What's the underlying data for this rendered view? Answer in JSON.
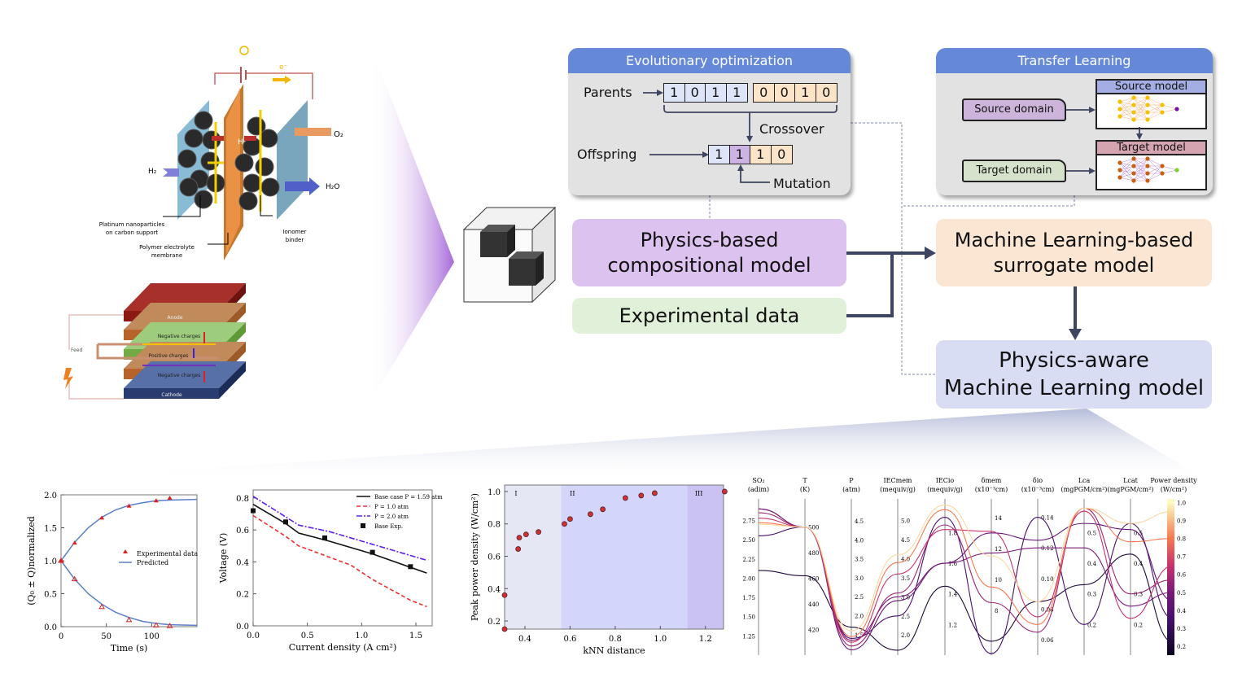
{
  "fuel_cell": {
    "h2": "H₂",
    "o2": "O₂",
    "h2o": "H₂O",
    "h_plus": "H⁺",
    "electron": "e⁻",
    "pt_label_1": "Platinum nanoparticles",
    "pt_label_2": "on carbon support",
    "membrane_1": "Polymer electrolyte",
    "membrane_2": "membrane",
    "ionomer_1": "Ionomer",
    "ionomer_2": "binder"
  },
  "stack": {
    "anode": "Anode",
    "neg1": "Negative charges",
    "pos": "Positive charges",
    "neg2": "Negative charges",
    "cathode": "Cathode",
    "feed": "Feed"
  },
  "evo": {
    "title": "Evolutionary optimization",
    "parents": "Parents",
    "offspring": "Offspring",
    "crossover": "Crossover",
    "mutation": "Mutation",
    "parent_a": [
      "1",
      "0",
      "1",
      "1"
    ],
    "parent_b": [
      "0",
      "0",
      "1",
      "0"
    ],
    "child": [
      "1",
      "1",
      "1",
      "0"
    ]
  },
  "transfer": {
    "title": "Transfer Learning",
    "source_domain": "Source domain",
    "target_domain": "Target domain",
    "source_model": "Source model",
    "target_model": "Target model"
  },
  "boxes": {
    "physics": "Physics-based\ncompositional model",
    "experimental": "Experimental data",
    "ml": "Machine Learning-based\nsurrogate model",
    "aware": "Physics-aware\nMachine Learning model"
  },
  "colors": {
    "header": "#6589d8",
    "physics": "#dcc2ef",
    "experimental": "#e1f0d9",
    "ml": "#fbe5d3",
    "aware": "#d8ddf4",
    "arrow": "#3d4560"
  },
  "chart_data": [
    {
      "type": "line",
      "xlabel": "Time (s)",
      "ylabel": "(Q₀ ± Q)normalized",
      "xlim": [
        0,
        150
      ],
      "ylim": [
        0,
        2.0
      ],
      "xticks": [
        "0",
        "50",
        "100"
      ],
      "yticks": [
        "0.0",
        "0.5",
        "1.0",
        "1.5",
        "2.0"
      ],
      "legend": [
        "Experimental data",
        "Predicted"
      ],
      "exp_x": [
        0,
        15,
        45,
        75,
        105,
        120
      ],
      "exp_upper": [
        1.0,
        1.27,
        1.65,
        1.83,
        1.91,
        1.95
      ],
      "exp_lower": [
        1.0,
        0.72,
        0.3,
        0.1,
        0.02,
        0.01
      ],
      "pred_x": [
        0,
        15,
        30,
        45,
        60,
        75,
        90,
        105,
        120,
        150
      ],
      "pred_upper": [
        1,
        1.28,
        1.5,
        1.66,
        1.77,
        1.84,
        1.88,
        1.91,
        1.92,
        1.93
      ],
      "pred_lower": [
        1,
        0.72,
        0.5,
        0.34,
        0.22,
        0.14,
        0.08,
        0.05,
        0.03,
        0.02
      ]
    },
    {
      "type": "line",
      "xlabel": "Current density (A cm²)",
      "ylabel": "Voltage (V)",
      "xlim": [
        0,
        1.65
      ],
      "ylim": [
        0,
        0.85
      ],
      "xticks": [
        "0.0",
        "0.5",
        "1.0",
        "1.5"
      ],
      "yticks": [
        "0.0",
        "0.2",
        "0.4",
        "0.6",
        "0.8"
      ],
      "series": [
        {
          "name": "Base case P = 1.59 atm",
          "x": [
            0,
            0.3,
            0.42,
            0.7,
            1.1,
            1.6
          ],
          "y": [
            0.76,
            0.64,
            0.58,
            0.53,
            0.45,
            0.33
          ]
        },
        {
          "name": "P = 1.0 atm",
          "x": [
            0,
            0.3,
            0.42,
            0.9,
            1.1,
            1.45,
            1.6
          ],
          "y": [
            0.69,
            0.56,
            0.5,
            0.38,
            0.29,
            0.16,
            0.12
          ]
        },
        {
          "name": "P = 2.0 atm",
          "x": [
            0,
            0.42,
            0.7,
            1.1,
            1.6
          ],
          "y": [
            0.81,
            0.63,
            0.59,
            0.51,
            0.41
          ]
        },
        {
          "name": "Base Exp.",
          "x": [
            0,
            0.3,
            0.66,
            1.1,
            1.45
          ],
          "y": [
            0.72,
            0.65,
            0.55,
            0.46,
            0.37
          ]
        }
      ]
    },
    {
      "type": "scatter",
      "xlabel": "kNN distance",
      "ylabel": "Peak power density (W/cm²)",
      "xlim": [
        0.31,
        1.28
      ],
      "ylim": [
        0.15,
        1.04
      ],
      "xticks": [
        "0.4",
        "0.6",
        "0.8",
        "1.0",
        "1.2"
      ],
      "yticks": [
        "0.2",
        "0.4",
        "0.6",
        "0.8",
        "1.0"
      ],
      "regions": [
        {
          "label": "I",
          "from": 0.31,
          "to": 0.56
        },
        {
          "label": "II",
          "from": 0.56,
          "to": 1.12
        },
        {
          "label": "III",
          "from": 1.12,
          "to": 1.28
        }
      ],
      "x": [
        0.31,
        0.31,
        0.37,
        0.375,
        0.405,
        0.46,
        0.575,
        0.6,
        0.69,
        0.745,
        0.845,
        0.915,
        0.975,
        1.285
      ],
      "y": [
        0.15,
        0.36,
        0.645,
        0.715,
        0.735,
        0.75,
        0.8,
        0.83,
        0.86,
        0.89,
        0.96,
        0.975,
        0.99,
        1.0
      ]
    },
    {
      "type": "parallel",
      "axes": [
        {
          "name": "SO₂",
          "unit": "(adim)",
          "range": [
            1.0,
            3.03
          ],
          "ticks": [
            "1.25",
            "1.50",
            "1.75",
            "2.00",
            "2.25",
            "2.50",
            "2.75"
          ]
        },
        {
          "name": "T",
          "unit": "(K)",
          "range": [
            400,
            522
          ],
          "ticks": [
            "420",
            "440",
            "460",
            "480",
            "500"
          ]
        },
        {
          "name": "P",
          "unit": "(atm)",
          "range": [
            0.96,
            5.08
          ],
          "ticks": [
            "1.5",
            "2.0",
            "2.5",
            "3.0",
            "3.5",
            "4.0",
            "4.5"
          ]
        },
        {
          "name": "IECmem",
          "unit": "(mequiv/g)",
          "range": [
            1.47,
            5.57
          ],
          "ticks": [
            "2.0",
            "2.5",
            "3.0",
            "3.5",
            "4.0",
            "4.5",
            "5.0"
          ]
        },
        {
          "name": "IECio",
          "unit": "(mequiv/g)",
          "range": [
            1.0,
            2.02
          ],
          "ticks": [
            "1.2",
            "1.4",
            "1.6",
            "1.8"
          ]
        },
        {
          "name": "δmem",
          "unit": "(x10⁻³cm)",
          "range": [
            5.1,
            15.2
          ],
          "ticks": [
            "8",
            "10",
            "12",
            "14"
          ]
        },
        {
          "name": "δio",
          "unit": "(x10⁻³cm)",
          "range": [
            0.05,
            0.152
          ],
          "ticks": [
            "0.06",
            "0.08",
            "0.10",
            "0.12",
            "0.14"
          ]
        },
        {
          "name": "Lca",
          "unit": "(mgPGM/cm²)",
          "range": [
            0.1,
            0.61
          ],
          "ticks": [
            "0.2",
            "0.3",
            "0.4",
            "0.5"
          ]
        },
        {
          "name": "Lcat",
          "unit": "(mgPGM/cm²)",
          "range": [
            0.1,
            0.61
          ],
          "ticks": [
            "0.2",
            "0.3",
            "0.4",
            "0.5"
          ]
        },
        {
          "name": "Power density",
          "unit": "(W/cm²)",
          "range": [
            0.15,
            1.02
          ],
          "ticks": [
            "0.2",
            "0.3",
            "0.4",
            "0.5",
            "0.6",
            "0.7",
            "0.8",
            "0.9",
            "1.0"
          ]
        }
      ],
      "lines": [
        [
          2.1,
          462,
          1.7,
          1.6,
          1.45,
          6.0,
          0.085,
          0.33,
          0.43,
          0.22
        ],
        [
          2.55,
          500,
          1.4,
          2.5,
          1.9,
          5.2,
          0.14,
          0.2,
          0.53,
          0.35
        ],
        [
          2.9,
          500,
          1.1,
          2.9,
          1.6,
          13.0,
          0.125,
          0.53,
          0.51,
          0.45
        ],
        [
          2.9,
          500,
          1.35,
          3.0,
          1.6,
          11.7,
          0.12,
          0.45,
          0.26,
          0.5
        ],
        [
          2.85,
          500,
          1.2,
          3.1,
          1.85,
          8.5,
          0.065,
          0.58,
          0.3,
          0.57
        ],
        [
          2.78,
          500,
          1.3,
          3.6,
          1.82,
          13.1,
          0.075,
          0.57,
          0.22,
          0.65
        ],
        [
          2.72,
          500,
          1.45,
          3.9,
          1.95,
          9.5,
          0.07,
          0.58,
          0.47,
          0.8
        ],
        [
          2.7,
          500,
          1.6,
          4.1,
          1.98,
          11.5,
          0.085,
          0.58,
          0.53,
          0.95
        ]
      ]
    }
  ]
}
